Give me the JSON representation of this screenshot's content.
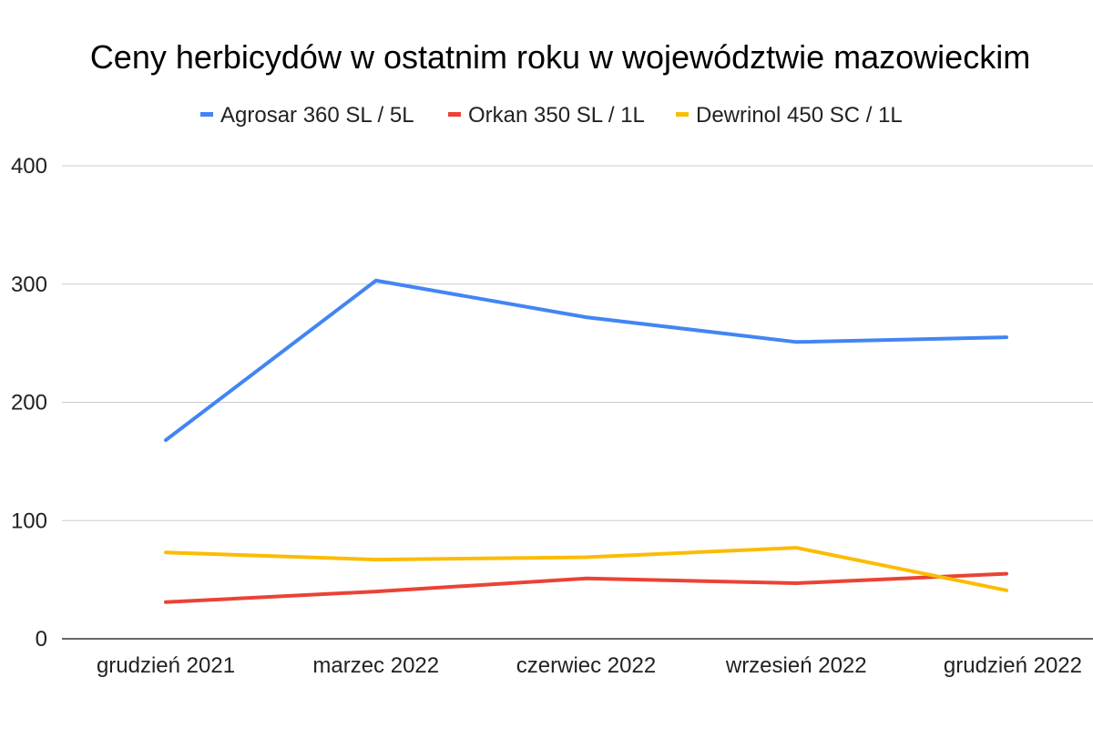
{
  "chart_data": {
    "type": "line",
    "title": "Ceny herbicydów w ostatnim roku w województwie mazowieckim",
    "xlabel": "",
    "ylabel": "",
    "categories": [
      "grudzień 2021",
      "marzec 2022",
      "czerwiec 2022",
      "wrzesień 2022",
      "grudzień 2022"
    ],
    "ylim": [
      0,
      400
    ],
    "yticks": [
      "0",
      "100",
      "200",
      "300",
      "400"
    ],
    "grid": true,
    "legend_position": "top",
    "series": [
      {
        "name": "Agrosar 360 SL / 5L",
        "color": "#4285f4",
        "values": [
          168,
          303,
          272,
          251,
          255
        ]
      },
      {
        "name": "Orkan 350 SL / 1L",
        "color": "#ea4335",
        "values": [
          31,
          40,
          51,
          47,
          55
        ]
      },
      {
        "name": "Dewrinol 450 SC / 1L",
        "color": "#fbbc04",
        "values": [
          73,
          67,
          69,
          77,
          41
        ]
      }
    ]
  }
}
